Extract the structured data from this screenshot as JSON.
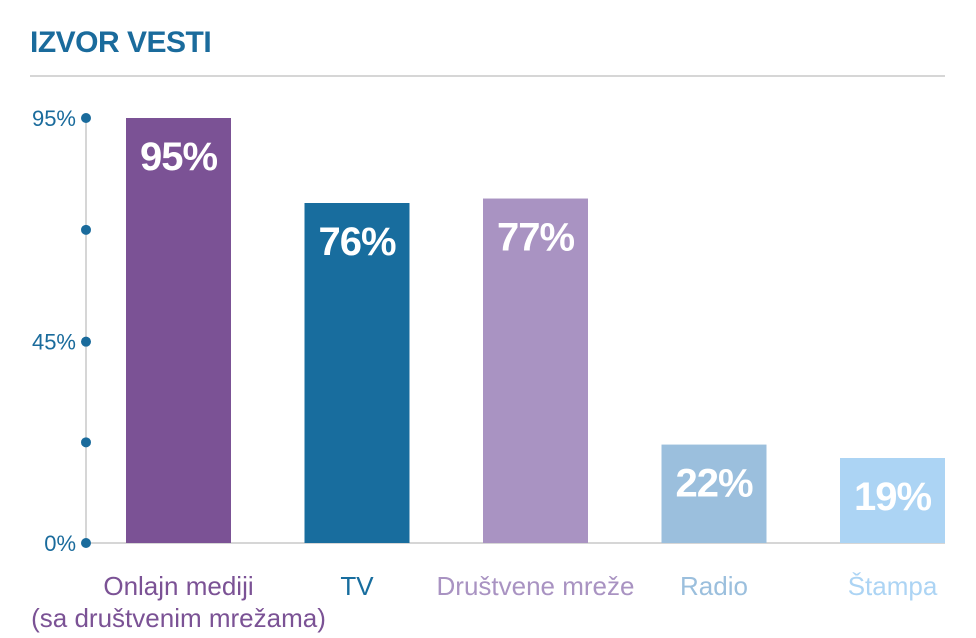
{
  "chart_data": {
    "type": "bar",
    "title": "IZVOR VESTI",
    "categories": [
      [
        "Onlajn mediji",
        "(sa društvenim mrežama)"
      ],
      [
        "TV"
      ],
      [
        "Društvene mreže"
      ],
      [
        "Radio"
      ],
      [
        "Štampa"
      ]
    ],
    "values": [
      95,
      76,
      77,
      22,
      19
    ],
    "data_labels": [
      "95%",
      "76%",
      "77%",
      "22%",
      "19%"
    ],
    "colors": [
      "#7b5295",
      "#186d9e",
      "#a993c2",
      "#9bbfdd",
      "#acd4f4"
    ],
    "label_colors": [
      "#7b5295",
      "#186d9e",
      "#a993c2",
      "#9bbfdd",
      "#acd4f4"
    ],
    "ylim": [
      0,
      95
    ],
    "yticks": [
      0,
      45,
      95
    ],
    "ytick_labels": [
      "0%",
      "45%",
      "95%"
    ],
    "minor_ticks": [
      22.5,
      70
    ],
    "axis_color": "#1a6b9c",
    "line_color": "#c8c8c8"
  }
}
